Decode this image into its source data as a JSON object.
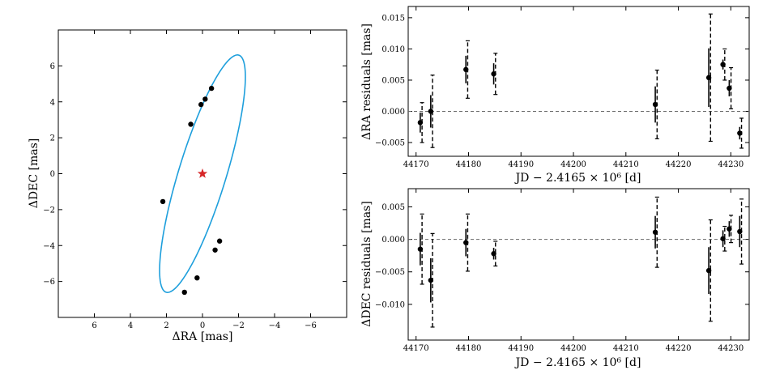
{
  "chart_data": [
    {
      "type": "scatter",
      "panel": "orbit",
      "xlabel": "ΔRA [mas]",
      "ylabel": "ΔDEC [mas]",
      "xlim": [
        8,
        -8
      ],
      "ylim": [
        -8,
        8
      ],
      "xticks": [
        6,
        4,
        2,
        0,
        -2,
        -4,
        -6
      ],
      "xtick_labels": [
        "6",
        "4",
        "2",
        "0",
        "−2",
        "−4",
        "−6"
      ],
      "yticks": [
        -6,
        -4,
        -2,
        0,
        2,
        4,
        6
      ],
      "ytick_labels": [
        "−6",
        "−4",
        "−2",
        "0",
        "2",
        "4",
        "6"
      ],
      "orbit_color": "#1e9fdc",
      "orbit": {
        "center": [
          0.0,
          0.0
        ],
        "semi_major": 6.9,
        "semi_minor": 1.32,
        "angle_deg_from_x": 73
      },
      "star": {
        "x": 0.0,
        "y": 0.0,
        "color": "#d62728"
      },
      "points": [
        {
          "x": 2.2,
          "y": -1.55
        },
        {
          "x": 0.65,
          "y": 2.75
        },
        {
          "x": 0.08,
          "y": 3.85
        },
        {
          "x": -0.15,
          "y": 4.15
        },
        {
          "x": -0.5,
          "y": 4.75
        },
        {
          "x": -0.95,
          "y": -3.75
        },
        {
          "x": -0.7,
          "y": -4.25
        },
        {
          "x": 0.3,
          "y": -5.8
        },
        {
          "x": 1.0,
          "y": -6.6
        }
      ]
    },
    {
      "type": "errorbar",
      "panel": "ra-residuals",
      "xlabel": "JD − 2.4165 × 10⁶ [d]",
      "ylabel": "ΔRA residuals [mas]",
      "xlim": [
        44168.5,
        44233.5
      ],
      "ylim": [
        -0.0072,
        0.0168
      ],
      "xticks": [
        44170,
        44180,
        44190,
        44200,
        44210,
        44220,
        44230
      ],
      "xtick_labels": [
        "44170",
        "44180",
        "44190",
        "44200",
        "44210",
        "44220",
        "44230"
      ],
      "yticks": [
        -0.005,
        0.0,
        0.005,
        0.01,
        0.015
      ],
      "ytick_labels": [
        "−0.005",
        "0.000",
        "0.005",
        "0.010",
        "0.015"
      ],
      "points": [
        {
          "x": 44170.8,
          "y": -0.0018,
          "err_in": 0.0016,
          "err_out": 0.0032
        },
        {
          "x": 44172.8,
          "y": 0.0,
          "err_in": 0.0026,
          "err_out": 0.0058
        },
        {
          "x": 44179.5,
          "y": 0.0067,
          "err_in": 0.0022,
          "err_out": 0.0046
        },
        {
          "x": 44184.8,
          "y": 0.006,
          "err_in": 0.0017,
          "err_out": 0.0033
        },
        {
          "x": 44215.6,
          "y": 0.0011,
          "err_in": 0.0029,
          "err_out": 0.0055
        },
        {
          "x": 44225.8,
          "y": 0.0054,
          "err_in": 0.0047,
          "err_out": 0.0102
        },
        {
          "x": 44228.5,
          "y": 0.0075,
          "err_in": 0.0008,
          "err_out": 0.0025
        },
        {
          "x": 44229.7,
          "y": 0.0037,
          "err_in": 0.0013,
          "err_out": 0.0033
        },
        {
          "x": 44231.7,
          "y": -0.0035,
          "err_in": 0.001,
          "err_out": 0.0024
        }
      ]
    },
    {
      "type": "errorbar",
      "panel": "dec-residuals",
      "xlabel": "JD − 2.4165 × 10⁶ [d]",
      "ylabel": "ΔDEC residuals [mas]",
      "xlim": [
        44168.5,
        44233.5
      ],
      "ylim": [
        -0.0155,
        0.0078
      ],
      "xticks": [
        44170,
        44180,
        44190,
        44200,
        44210,
        44220,
        44230
      ],
      "xtick_labels": [
        "44170",
        "44180",
        "44190",
        "44200",
        "44210",
        "44220",
        "44230"
      ],
      "yticks": [
        -0.01,
        -0.005,
        0.0,
        0.005
      ],
      "ytick_labels": [
        "−0.010",
        "−0.005",
        "0.000",
        "0.005"
      ],
      "points": [
        {
          "x": 44170.8,
          "y": -0.0015,
          "err_in": 0.0025,
          "err_out": 0.0054
        },
        {
          "x": 44172.8,
          "y": -0.0063,
          "err_in": 0.0034,
          "err_out": 0.0072
        },
        {
          "x": 44179.5,
          "y": -0.0005,
          "err_in": 0.0021,
          "err_out": 0.0044
        },
        {
          "x": 44184.8,
          "y": -0.0022,
          "err_in": 0.0009,
          "err_out": 0.0019
        },
        {
          "x": 44215.6,
          "y": 0.0011,
          "err_in": 0.0025,
          "err_out": 0.0054
        },
        {
          "x": 44225.8,
          "y": -0.0048,
          "err_in": 0.0036,
          "err_out": 0.0078
        },
        {
          "x": 44228.5,
          "y": 0.0001,
          "err_in": 0.0013,
          "err_out": 0.0019
        },
        {
          "x": 44229.7,
          "y": 0.0016,
          "err_in": 0.0012,
          "err_out": 0.0021
        },
        {
          "x": 44231.7,
          "y": 0.0012,
          "err_in": 0.0024,
          "err_out": 0.005
        }
      ]
    }
  ]
}
